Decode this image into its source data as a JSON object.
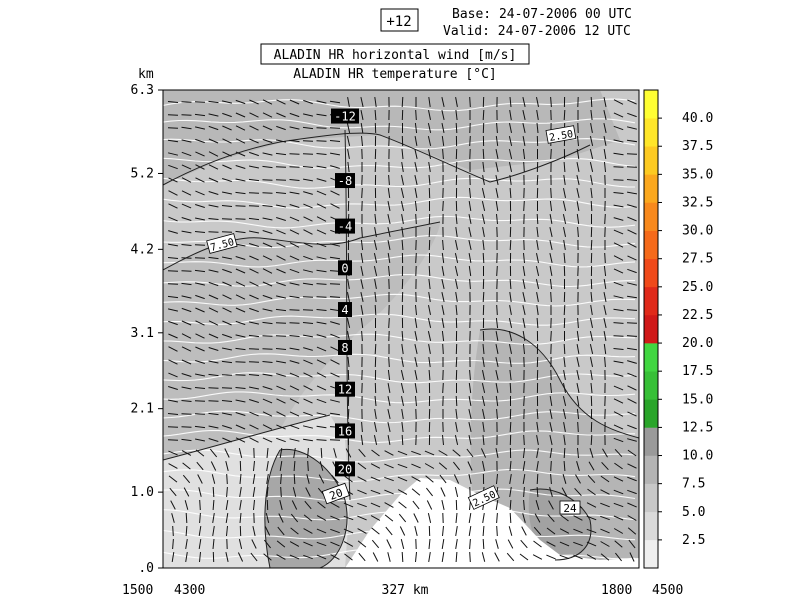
{
  "header": {
    "forecast_step": "+12",
    "base_line": "Base: 24-07-2006  00 UTC",
    "valid_line": "Valid: 24-07-2006  12 UTC",
    "title_main": "ALADIN HR horizontal wind [m/s]",
    "title_sub": "ALADIN HR temperature [°C]"
  },
  "chart_data": {
    "type": "heatmap",
    "title": "ALADIN HR horizontal wind [m/s]",
    "subtitle": "ALADIN HR temperature [°C]",
    "ylabel": "km",
    "ylim": [
      0,
      6.3
    ],
    "yticks": [
      {
        "value": 0,
        "label": ".0"
      },
      {
        "value": 1.0,
        "label": "1.0"
      },
      {
        "value": 2.1,
        "label": "2.1"
      },
      {
        "value": 3.1,
        "label": "3.1"
      },
      {
        "value": 4.2,
        "label": "4.2"
      },
      {
        "value": 5.2,
        "label": "5.2"
      },
      {
        "value": 6.3,
        "label": "6.3"
      }
    ],
    "xlabels": {
      "left_outer": "1500",
      "left_inner": "4300",
      "center": "327 km",
      "right_inner": "1800",
      "right_outer": "4500"
    },
    "colorbar": {
      "ticks": [
        "2.5",
        "5.0",
        "7.5",
        "10.0",
        "12.5",
        "15.0",
        "17.5",
        "20.0",
        "22.5",
        "25.0",
        "27.5",
        "30.0",
        "32.5",
        "35.0",
        "37.5",
        "40.0"
      ],
      "colors": [
        "#efefef",
        "#dadada",
        "#c8c8c8",
        "#b4b4b4",
        "#9a9a9a",
        "#2aa52a",
        "#37c037",
        "#41d641",
        "#d01919",
        "#e02a1a",
        "#f04a1a",
        "#f56a1a",
        "#f8891c",
        "#fba81e",
        "#fdca22",
        "#ffe629",
        "#ffff33"
      ]
    },
    "temperature_labels": [
      {
        "text": "-12",
        "height_km": 5.95
      },
      {
        "text": "-8",
        "height_km": 5.1
      },
      {
        "text": "-4",
        "height_km": 4.5
      },
      {
        "text": "0",
        "height_km": 3.95
      },
      {
        "text": "4",
        "height_km": 3.4
      },
      {
        "text": "8",
        "height_km": 2.9
      },
      {
        "text": "12",
        "height_km": 2.35
      },
      {
        "text": "16",
        "height_km": 1.8
      },
      {
        "text": "20",
        "height_km": 1.3
      }
    ],
    "wind_speed_labels": [
      "7.50",
      "2.50",
      "20",
      "24",
      "2.50"
    ],
    "grid": false
  }
}
